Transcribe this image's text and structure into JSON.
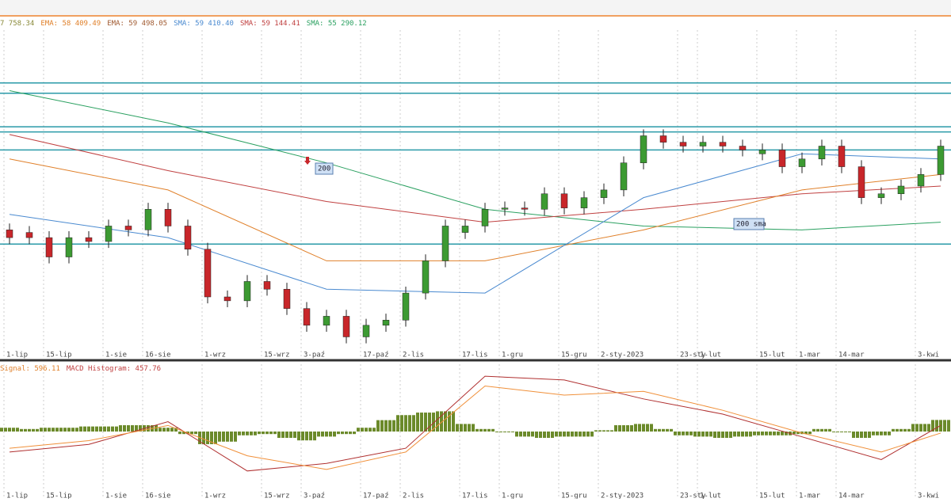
{
  "chart_data": [
    {
      "type": "candlestick",
      "header": [
        {
          "text": "7 758.34",
          "color": "#8a8a3a"
        },
        {
          "text": "EMA: 58 409.49",
          "color": "#e0802a"
        },
        {
          "text": "EMA: 59 498.05",
          "color": "#a05a30"
        },
        {
          "text": "SMA: 59 410.40",
          "color": "#4a8ad0"
        },
        {
          "text": "SMA: 59 144.41",
          "color": "#c04040"
        },
        {
          "text": "SMA: 55 290.12",
          "color": "#2aa060"
        }
      ],
      "categories": [
        "1-lip",
        null,
        "15-lip",
        null,
        null,
        "1-sie",
        null,
        "16-sie",
        null,
        null,
        "1-wrz",
        null,
        null,
        "15-wrz",
        null,
        "3-paź",
        null,
        null,
        "17-paź",
        null,
        "2-lis",
        null,
        null,
        "17-lis",
        null,
        "1-gru",
        null,
        null,
        "15-gru",
        null,
        "2-sty-2023",
        null,
        null,
        null,
        "23-sty",
        "1-lut",
        null,
        null,
        "15-lut",
        null,
        "1-mar",
        null,
        "14-mar",
        null,
        null,
        null,
        "3-kwi",
        null
      ],
      "open": [
        49500,
        49300,
        48900,
        47400,
        48900,
        48600,
        49800,
        49500,
        51100,
        49800,
        48000,
        44300,
        44000,
        45500,
        44900,
        43400,
        42100,
        42800,
        41200,
        42100,
        42500,
        44600,
        47100,
        49300,
        49800,
        51100,
        51200,
        51100,
        52300,
        51200,
        52000,
        52600,
        54700,
        56800,
        56300,
        56000,
        56300,
        56000,
        55400,
        55700,
        54400,
        55000,
        56000,
        54400,
        52000,
        52300,
        52900,
        53800
      ],
      "high": [
        50000,
        49800,
        49400,
        49400,
        49400,
        50300,
        50300,
        51600,
        51600,
        50300,
        48500,
        44800,
        46000,
        46000,
        45400,
        43900,
        43300,
        43300,
        42600,
        43000,
        45100,
        47600,
        50300,
        50300,
        51600,
        51700,
        51700,
        52800,
        52800,
        52500,
        53100,
        55200,
        57300,
        57300,
        56800,
        56800,
        56800,
        56500,
        56200,
        56200,
        55500,
        56500,
        56500,
        54900,
        52800,
        53400,
        54300,
        56500
      ],
      "low": [
        48400,
        48400,
        46900,
        46900,
        48100,
        48100,
        49000,
        49000,
        49300,
        47500,
        43800,
        43500,
        43500,
        44400,
        42900,
        41600,
        41600,
        40700,
        40700,
        41600,
        42000,
        44100,
        46600,
        48800,
        49300,
        50600,
        50600,
        50600,
        50700,
        50700,
        51500,
        52100,
        54200,
        55800,
        55500,
        55500,
        55500,
        55200,
        54900,
        53900,
        53900,
        54500,
        53900,
        51500,
        51500,
        51800,
        52400,
        53300
      ],
      "close": [
        48900,
        48900,
        47400,
        48900,
        48600,
        49800,
        49500,
        51100,
        49800,
        48000,
        44300,
        44000,
        45500,
        44900,
        43400,
        42100,
        42800,
        41200,
        42100,
        42500,
        44600,
        47100,
        49800,
        49800,
        51100,
        51200,
        51100,
        52300,
        51200,
        52000,
        52600,
        54700,
        56800,
        56300,
        56000,
        56300,
        56000,
        55700,
        55700,
        54400,
        55000,
        56000,
        54400,
        52000,
        52300,
        52900,
        53800,
        56000
      ],
      "up_color": "#3c9a32",
      "down_color": "#c8262a",
      "ylim": [
        40000,
        65000
      ],
      "levels": [
        60900,
        60100,
        57500,
        57100,
        55700,
        48400
      ],
      "level_color": "#2a9aa8",
      "series": [
        {
          "x": [
            0,
            8,
            16,
            24,
            32,
            40,
            47
          ],
          "values": [
            60300,
            57800,
            54700,
            51100,
            49800,
            49500,
            50100
          ],
          "color": "#2aa060"
        },
        {
          "x": [
            0,
            8,
            16,
            24,
            32,
            40,
            47
          ],
          "values": [
            56900,
            54100,
            51700,
            50100,
            51100,
            52300,
            52900
          ],
          "color": "#c04040"
        },
        {
          "x": [
            0,
            8,
            16,
            24,
            32,
            40,
            47
          ],
          "values": [
            55000,
            52600,
            47100,
            47100,
            49500,
            52600,
            53800
          ],
          "color": "#e0802a"
        },
        {
          "x": [
            0,
            8,
            16,
            24,
            32,
            40,
            47
          ],
          "values": [
            50700,
            48900,
            44900,
            44600,
            52000,
            55400,
            55000
          ],
          "color": "#4a8ad0"
        }
      ],
      "annotations": [
        "200",
        "200 sma"
      ]
    },
    {
      "type": "macd",
      "header": [
        {
          "text": "Signal: 596.11",
          "color": "#e0802a"
        },
        {
          "text": "MACD Histogram: 457.76",
          "color": "#c04040"
        }
      ],
      "histogram": [
        150,
        100,
        150,
        150,
        200,
        200,
        250,
        250,
        150,
        -100,
        -500,
        -400,
        -150,
        -100,
        -250,
        -350,
        -200,
        -100,
        150,
        450,
        650,
        750,
        800,
        300,
        100,
        0,
        -200,
        -250,
        -200,
        -200,
        50,
        250,
        300,
        100,
        -150,
        -200,
        -250,
        -200,
        -150,
        -150,
        -100,
        100,
        0,
        -250,
        -150,
        100,
        300,
        458
      ],
      "histogram_color": "#6b8a2a",
      "ylim": [
        -2600,
        2600
      ],
      "series": [
        {
          "x": [
            0,
            4,
            8,
            12,
            16,
            20,
            24,
            28,
            32,
            36,
            40,
            44,
            47
          ],
          "values": [
            -810,
            -510,
            390,
            -1560,
            -1260,
            -660,
            2190,
            2040,
            1290,
            690,
            -210,
            -1110,
            240
          ],
          "color": "#b03030"
        },
        {
          "x": [
            0,
            4,
            8,
            12,
            16,
            20,
            24,
            28,
            32,
            36,
            40,
            44,
            47
          ],
          "values": [
            -660,
            -360,
            240,
            -960,
            -1500,
            -810,
            1800,
            1440,
            1590,
            840,
            -60,
            -810,
            -60
          ],
          "color": "#f0903a"
        }
      ]
    }
  ]
}
